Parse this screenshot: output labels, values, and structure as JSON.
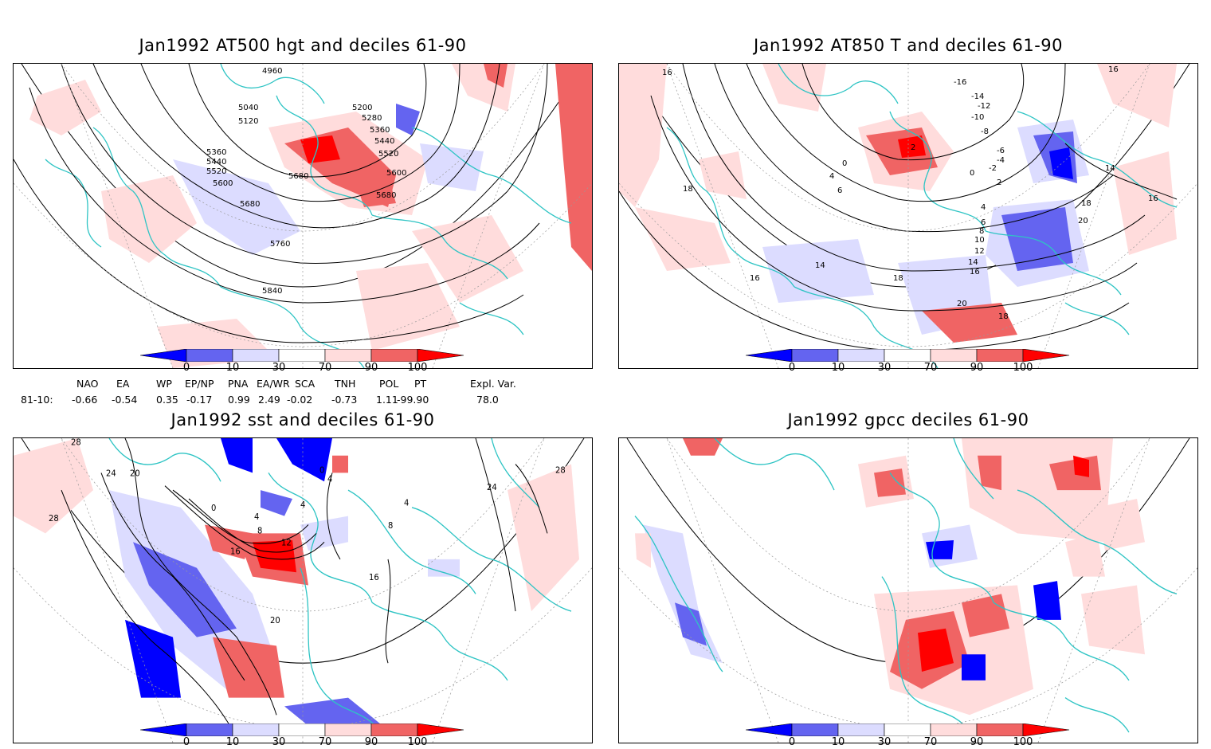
{
  "panels": {
    "p1": {
      "title": "Jan1992 AT500 hgt and deciles 61-90",
      "labels": [
        "4960",
        "5040",
        "5120",
        "5200",
        "5280",
        "5360",
        "5440",
        "5520",
        "5600",
        "5680",
        "5760",
        "5840"
      ]
    },
    "p2": {
      "title": "Jan1992 AT850 T and deciles 61-90",
      "labels": [
        "16",
        "-16",
        "-14",
        "-12",
        "-10",
        "-8",
        "-6",
        "-4",
        "-2",
        "0",
        "2",
        "4",
        "6",
        "8",
        "10",
        "12",
        "14",
        "18",
        "20"
      ]
    },
    "p3": {
      "title": "Jan1992 sst and deciles 61-90",
      "labels": [
        "28",
        "24",
        "20",
        "16",
        "12",
        "8",
        "4",
        "0"
      ]
    },
    "p4": {
      "title": "Jan1992 gpcc deciles 61-90"
    }
  },
  "colorbar": {
    "ticks": [
      "0",
      "10",
      "30",
      "70",
      "90",
      "100"
    ],
    "colors": {
      "dark_blue": "#0000ff",
      "mid_blue": "#6464f0",
      "light_blue": "#dcdcff",
      "white": "#ffffff",
      "light_red": "#ffdcdc",
      "mid_red": "#f06464",
      "dark_red": "#ff0000"
    }
  },
  "indices": {
    "headers": [
      "NAO",
      "EA",
      "WP",
      "EP/NP",
      "PNA",
      "EA/WR",
      "SCA",
      "TNH",
      "POL",
      "PT",
      "Expl. Var."
    ],
    "row_label": "81-10:",
    "values": [
      "-0.66",
      "-0.54",
      "0.35",
      "-0.17",
      "0.99",
      "2.49",
      "-0.02",
      "-0.73",
      "1.11",
      "-99.90",
      "78.0"
    ]
  },
  "map_colors": {
    "coast": "#2ec4c4",
    "contour": "#000000",
    "grid": "#9a9a9a"
  }
}
